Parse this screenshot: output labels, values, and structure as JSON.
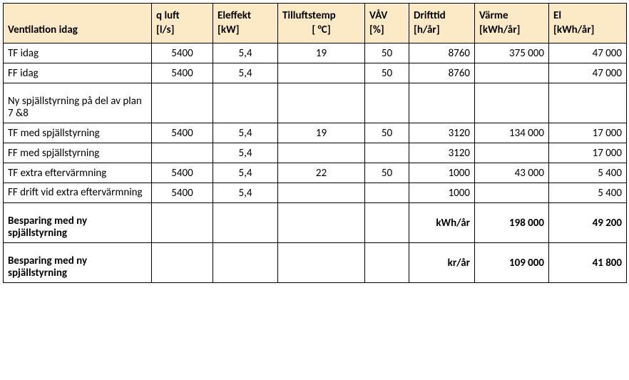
{
  "header": {
    "row1": [
      "",
      "q luft",
      "Eleffekt",
      "Tilluftstemp",
      "VÅV",
      "Drifttid",
      "Värme",
      "El"
    ],
    "row2": [
      "Ventilation idag",
      "[l/s]",
      "[kW]",
      "[ °C]",
      "[%]",
      "[h/år]",
      "[kWh/år]",
      "[kWh/år]"
    ]
  },
  "rows": [
    {
      "label": "TF idag",
      "qluft": "5400",
      "eleffekt": "5,4",
      "tillufts": "19",
      "vav": "50",
      "drifttid": "8760",
      "varme": "375 000",
      "el": "47 000"
    },
    {
      "label": "FF idag",
      "qluft": "5400",
      "eleffekt": "5,4",
      "tillufts": "",
      "vav": "50",
      "drifttid": "8760",
      "varme": "",
      "el": "47 000"
    },
    {
      "section": true,
      "label": "Ny spjällstyrning på del av plan 7 &8"
    },
    {
      "label": "TF med spjällstyrning",
      "qluft": "5400",
      "eleffekt": "5,4",
      "tillufts": "19",
      "vav": "50",
      "drifttid": "3120",
      "varme": "134 000",
      "el": "17 000"
    },
    {
      "label": "FF med spjällstyrning",
      "qluft": "",
      "eleffekt": "5,4",
      "tillufts": "",
      "vav": "",
      "drifttid": "3120",
      "varme": "",
      "el": "17 000"
    },
    {
      "label": "TF extra eftervärmning",
      "qluft": "5400",
      "eleffekt": "5,4",
      "tillufts": "22",
      "vav": "50",
      "drifttid": "1000",
      "varme": "43 000",
      "el": "5 400"
    },
    {
      "tall": true,
      "label": "FF drift vid extra eftervärmning",
      "qluft": "5400",
      "eleffekt": "5,4",
      "tillufts": "",
      "vav": "",
      "drifttid": "1000",
      "varme": "",
      "el": "5 400"
    },
    {
      "section": true,
      "bold": true,
      "label": "Besparing med ny spjällstyrning",
      "drifttid": "kWh/år",
      "varme": "198 000",
      "el": "49 200"
    },
    {
      "section": true,
      "bold": true,
      "label": "Besparing med ny spjällstyrning",
      "drifttid": "kr/år",
      "varme": "109 000",
      "el": "41 800"
    }
  ]
}
